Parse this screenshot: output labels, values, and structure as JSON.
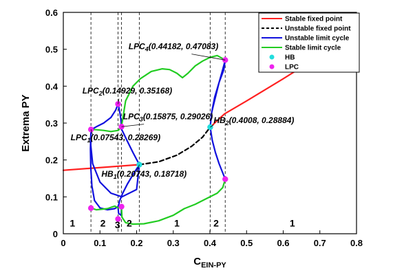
{
  "chart_data": {
    "type": "line",
    "xlabel": "C",
    "xlabel_sub": "EIN-PY",
    "ylabel": "Extrema PY",
    "xlim": [
      0,
      0.8
    ],
    "ylim": [
      0,
      0.6
    ],
    "xticks": [
      "0",
      "0.1",
      "0.2",
      "0.3",
      "0.4",
      "0.5",
      "0.6",
      "0.7",
      "0.8"
    ],
    "yticks": [
      "0",
      "0.1",
      "0.2",
      "0.3",
      "0.4",
      "0.5",
      "0.6"
    ],
    "legend_position": "top-right",
    "legend": [
      {
        "label": "Stable fixed point",
        "color": "#ff2020",
        "style": "solid"
      },
      {
        "label": "Unstable fixed point",
        "color": "#000000",
        "style": "dashed"
      },
      {
        "label": "Unstable limit cycle",
        "color": "#1010dd",
        "style": "solid"
      },
      {
        "label": "Stable limit cycle",
        "color": "#22cc22",
        "style": "solid"
      },
      {
        "label": "HB",
        "color": "#22dddd",
        "style": "marker"
      },
      {
        "label": "LPC",
        "color": "#ee22ee",
        "style": "marker"
      }
    ],
    "dividers_x": [
      0.07543,
      0.14929,
      0.15875,
      0.20743,
      0.4008,
      0.44182
    ],
    "series": [
      {
        "name": "Stable fixed point",
        "color": "#ff2020",
        "dash": false,
        "x": [
          0.0,
          0.20743
        ],
        "y": [
          0.172,
          0.18718
        ]
      },
      {
        "name": "Stable fixed point",
        "color": "#ff2020",
        "dash": false,
        "x": [
          0.4008,
          0.44,
          0.5,
          0.55,
          0.6,
          0.64
        ],
        "y": [
          0.28884,
          0.325,
          0.36,
          0.39,
          0.42,
          0.445
        ]
      },
      {
        "name": "Unstable fixed point",
        "color": "#000000",
        "dash": true,
        "x": [
          0.20743,
          0.26,
          0.31,
          0.35,
          0.38,
          0.4008
        ],
        "y": [
          0.18718,
          0.195,
          0.213,
          0.237,
          0.262,
          0.28884
        ]
      },
      {
        "name": "Unstable limit cycle",
        "color": "#1010dd",
        "dash": false,
        "x": [
          0.4008,
          0.405,
          0.415,
          0.425,
          0.435,
          0.4418,
          0.438,
          0.425,
          0.413,
          0.405,
          0.4008
        ],
        "y": [
          0.28884,
          0.33,
          0.37,
          0.41,
          0.445,
          0.47083,
          0.445,
          0.41,
          0.37,
          0.33,
          0.28884
        ]
      },
      {
        "name": "Unstable limit cycle",
        "color": "#1010dd",
        "dash": false,
        "x": [
          0.4008,
          0.406,
          0.415,
          0.425,
          0.435,
          0.4418
        ],
        "y": [
          0.28884,
          0.255,
          0.22,
          0.19,
          0.165,
          0.148
        ]
      },
      {
        "name": "Unstable limit cycle",
        "color": "#1010dd",
        "dash": false,
        "x": [
          0.20743,
          0.19,
          0.175,
          0.163,
          0.158,
          0.1587
        ],
        "y": [
          0.18718,
          0.22,
          0.25,
          0.275,
          0.285,
          0.29026
        ]
      },
      {
        "name": "Unstable limit cycle",
        "color": "#1010dd",
        "dash": false,
        "x": [
          0.20743,
          0.19,
          0.175,
          0.162,
          0.154,
          0.1493,
          0.151,
          0.158,
          0.1587
        ],
        "y": [
          0.18718,
          0.16,
          0.135,
          0.11,
          0.09,
          0.072,
          0.055,
          0.05,
          0.072
        ]
      },
      {
        "name": "Unstable limit cycle",
        "color": "#1010dd",
        "dash": false,
        "x": [
          0.1587,
          0.157,
          0.154,
          0.151,
          0.1493
        ],
        "y": [
          0.29026,
          0.31,
          0.33,
          0.345,
          0.35168
        ]
      },
      {
        "name": "Unstable limit cycle",
        "color": "#1010dd",
        "dash": false,
        "x": [
          0.1493,
          0.143,
          0.13,
          0.11,
          0.09,
          0.077
        ],
        "y": [
          0.35168,
          0.335,
          0.315,
          0.3,
          0.29,
          0.28269
        ]
      },
      {
        "name": "Unstable limit cycle",
        "color": "#1010dd",
        "dash": false,
        "x": [
          0.07543,
          0.075,
          0.08,
          0.1,
          0.13,
          0.16,
          0.2,
          0.20743
        ],
        "y": [
          0.28269,
          0.24,
          0.19,
          0.14,
          0.11,
          0.1,
          0.12,
          0.18718
        ]
      },
      {
        "name": "Unstable limit cycle",
        "color": "#1010dd",
        "dash": false,
        "x": [
          0.07543,
          0.074,
          0.075,
          0.078,
          0.085,
          0.1,
          0.12,
          0.14,
          0.15,
          0.1493
        ],
        "y": [
          0.28269,
          0.23,
          0.18,
          0.13,
          0.09,
          0.07,
          0.065,
          0.068,
          0.074,
          0.0745
        ]
      },
      {
        "name": "Stable limit cycle",
        "color": "#22cc22",
        "dash": false,
        "x": [
          0.07543,
          0.09,
          0.11,
          0.13,
          0.15,
          0.1587
        ],
        "y": [
          0.28269,
          0.282,
          0.28,
          0.277,
          0.28,
          0.29026
        ]
      },
      {
        "name": "Stable limit cycle",
        "color": "#22cc22",
        "dash": false,
        "x": [
          0.1587,
          0.17,
          0.19,
          0.21,
          0.24,
          0.27,
          0.29,
          0.31,
          0.325,
          0.34,
          0.36,
          0.38,
          0.4,
          0.42,
          0.4418
        ],
        "y": [
          0.29026,
          0.36,
          0.4,
          0.42,
          0.44,
          0.447,
          0.445,
          0.435,
          0.423,
          0.435,
          0.455,
          0.468,
          0.478,
          0.483,
          0.47083
        ]
      },
      {
        "name": "Stable limit cycle",
        "color": "#22cc22",
        "dash": false,
        "x": [
          0.07543,
          0.09,
          0.12,
          0.14,
          0.15,
          0.1587
        ],
        "y": [
          0.0695,
          0.065,
          0.068,
          0.075,
          0.07,
          0.0735
        ]
      },
      {
        "name": "Stable limit cycle",
        "color": "#22cc22",
        "dash": false,
        "x": [
          0.1587,
          0.16,
          0.17,
          0.19,
          0.22,
          0.26,
          0.3,
          0.33,
          0.36,
          0.39,
          0.42,
          0.435,
          0.4418
        ],
        "y": [
          0.0735,
          0.045,
          0.03,
          0.026,
          0.027,
          0.035,
          0.05,
          0.068,
          0.08,
          0.095,
          0.11,
          0.125,
          0.148
        ]
      }
    ],
    "points": [
      {
        "type": "HB",
        "x": 0.20743,
        "y": 0.18718,
        "color": "#22dddd"
      },
      {
        "type": "HB",
        "x": 0.4008,
        "y": 0.28884,
        "color": "#22dddd"
      },
      {
        "type": "LPC",
        "x": 0.07543,
        "y": 0.28269,
        "color": "#ee22ee"
      },
      {
        "type": "LPC",
        "x": 0.14929,
        "y": 0.35168,
        "color": "#ee22ee"
      },
      {
        "type": "LPC",
        "x": 0.15875,
        "y": 0.29026,
        "color": "#ee22ee"
      },
      {
        "type": "LPC",
        "x": 0.44182,
        "y": 0.47083,
        "color": "#ee22ee"
      },
      {
        "type": "LPC",
        "x": 0.07543,
        "y": 0.0695,
        "color": "#ee22ee"
      },
      {
        "type": "LPC",
        "x": 0.14929,
        "y": 0.04,
        "color": "#ee22ee"
      },
      {
        "type": "LPC",
        "x": 0.15875,
        "y": 0.0735,
        "color": "#ee22ee"
      },
      {
        "type": "LPC",
        "x": 0.44182,
        "y": 0.148,
        "color": "#ee22ee"
      }
    ],
    "annotations": [
      {
        "main": "LPC",
        "sub": "4",
        "text": "(0.44182, 0.47083)",
        "ax": 0.44182,
        "ay": 0.47083,
        "tx": 0.178,
        "ty": 0.5,
        "lx": 0.35,
        "ly": 0.487
      },
      {
        "main": "LPC",
        "sub": "2",
        "text": "(0.14929, 0.35168)",
        "ax": 0.14929,
        "ay": 0.35168,
        "tx": 0.052,
        "ty": 0.38,
        "lx": 0.152,
        "ly": 0.366
      },
      {
        "main": "LPC",
        "sub": "3",
        "text": "(0.15875, 0.29026)",
        "ax": 0.15875,
        "ay": 0.29026,
        "tx": 0.163,
        "ty": 0.31,
        "lx": 0.22,
        "ly": 0.297
      },
      {
        "main": "LPC",
        "sub": "1",
        "text": "(0.07543, 0.28269)",
        "ax": 0.07543,
        "ay": 0.28269,
        "tx": 0.02,
        "ty": 0.253,
        "lx": 0.08,
        "ly": 0.268
      },
      {
        "main": "HB",
        "sub": "2",
        "text": "(0.4008, 0.28884)",
        "ax": 0.4008,
        "ay": 0.28884,
        "tx": 0.41,
        "ty": 0.3,
        "lx": 0.41,
        "ly": 0.295
      },
      {
        "main": "HB",
        "sub": "1",
        "text": "(0.20743, 0.18718)",
        "ax": 0.20743,
        "ay": 0.18718,
        "tx": 0.104,
        "ty": 0.155,
        "lx": 0.2,
        "ly": 0.168
      }
    ],
    "regions": [
      {
        "label": "1",
        "x": 0.025,
        "y": 0.02
      },
      {
        "label": "2",
        "x": 0.108,
        "y": 0.02
      },
      {
        "label": "3",
        "x": 0.148,
        "y": 0.015
      },
      {
        "label": "2",
        "x": 0.18,
        "y": 0.02
      },
      {
        "label": "1",
        "x": 0.31,
        "y": 0.02
      },
      {
        "label": "2",
        "x": 0.417,
        "y": 0.02
      },
      {
        "label": "1",
        "x": 0.625,
        "y": 0.02
      }
    ]
  }
}
